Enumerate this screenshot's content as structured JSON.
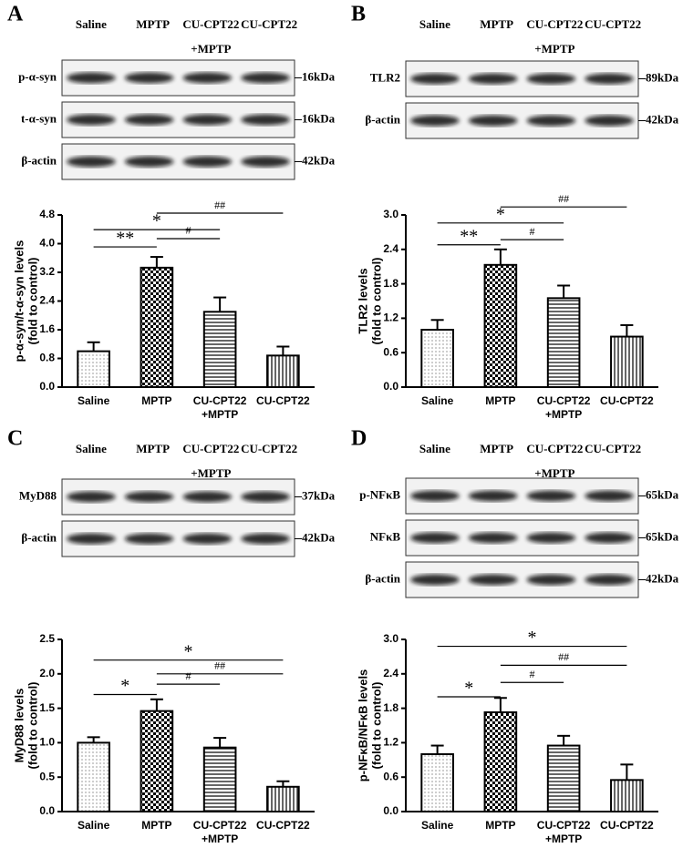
{
  "chart_data": [
    {
      "type": "bar",
      "panel_label": "A",
      "ylabel": [
        "p-α-syn/t-α-syn levels",
        "(fold to control)"
      ],
      "categories": [
        "Saline",
        "MPTP",
        [
          "CU-CPT22",
          "+MPTP"
        ],
        "CU-CPT22"
      ],
      "values": [
        1.0,
        3.33,
        2.1,
        0.88
      ],
      "errors": [
        0.25,
        0.3,
        0.4,
        0.25
      ],
      "patterns": [
        "dots",
        "checker",
        "hlines",
        "vlines"
      ],
      "color": "#000000",
      "ylim": [
        0,
        4.8
      ],
      "yticks": [
        {
          "value": 0,
          "label": "0.0"
        },
        0.8,
        1.6,
        2.4,
        3.2,
        {
          "value": 4,
          "label": "4.0"
        },
        4.8
      ],
      "annotations": [
        {
          "text": "**",
          "from": 0,
          "to": 1,
          "y": 3.91
        },
        {
          "text": "#",
          "from": 1,
          "to": 2,
          "y": 4.14
        },
        {
          "text": "*",
          "from": 0,
          "to": 2,
          "y": 4.39
        },
        {
          "text": "##",
          "from": 1,
          "to": 3,
          "y": 4.85
        }
      ]
    },
    {
      "type": "bar",
      "panel_label": "B",
      "ylabel": [
        "TLR2 levels",
        "(fold to control)"
      ],
      "categories": [
        "Saline",
        "MPTP",
        [
          "CU-CPT22",
          "+MPTP"
        ],
        "CU-CPT22"
      ],
      "values": [
        1.0,
        2.13,
        1.55,
        0.88
      ],
      "errors": [
        0.17,
        0.27,
        0.22,
        0.2
      ],
      "patterns": [
        "dots",
        "checker",
        "hlines",
        "vlines"
      ],
      "color": "#000000",
      "ylim": [
        0,
        3.0
      ],
      "yticks": [
        {
          "value": 0,
          "label": "0.0"
        },
        0.6,
        1.2,
        1.8,
        2.4,
        {
          "value": 3,
          "label": "3.0"
        }
      ],
      "annotations": [
        {
          "text": "**",
          "from": 0,
          "to": 1,
          "y": 2.48
        },
        {
          "text": "#",
          "from": 1,
          "to": 2,
          "y": 2.57
        },
        {
          "text": "*",
          "from": 0,
          "to": 2,
          "y": 2.86
        },
        {
          "text": "##",
          "from": 1,
          "to": 3,
          "y": 3.14
        }
      ]
    },
    {
      "type": "bar",
      "panel_label": "C",
      "ylabel": [
        "MyD88 levels",
        "(fold to control)"
      ],
      "categories": [
        "Saline",
        "MPTP",
        [
          "CU-CPT22",
          "+MPTP"
        ],
        "CU-CPT22"
      ],
      "values": [
        1.0,
        1.46,
        0.93,
        0.36
      ],
      "errors": [
        0.08,
        0.17,
        0.14,
        0.08
      ],
      "patterns": [
        "dots",
        "checker",
        "hlines",
        "vlines"
      ],
      "color": "#000000",
      "ylim": [
        0,
        2.5
      ],
      "yticks": [
        {
          "value": 0,
          "label": "0.0"
        },
        0.5,
        {
          "value": 1,
          "label": "1.0"
        },
        1.5,
        {
          "value": 2,
          "label": "2.0"
        },
        2.5
      ],
      "annotations": [
        {
          "text": "*",
          "from": 0,
          "to": 1,
          "y": 1.7
        },
        {
          "text": "#",
          "from": 1,
          "to": 2,
          "y": 1.85
        },
        {
          "text": "##",
          "from": 1,
          "to": 3,
          "y": 2.0
        },
        {
          "text": "*",
          "from": 0,
          "to": 3,
          "y": 2.2
        }
      ]
    },
    {
      "type": "bar",
      "panel_label": "D",
      "ylabel": [
        "p-NFκB/NFκB levels",
        "(fold to control)"
      ],
      "categories": [
        "Saline",
        "MPTP",
        [
          "CU-CPT22",
          "+MPTP"
        ],
        "CU-CPT22"
      ],
      "values": [
        1.0,
        1.73,
        1.15,
        0.55
      ],
      "errors": [
        0.15,
        0.25,
        0.17,
        0.27
      ],
      "patterns": [
        "dots",
        "checker",
        "hlines",
        "vlines"
      ],
      "color": "#000000",
      "ylim": [
        0,
        3.0
      ],
      "yticks": [
        {
          "value": 0,
          "label": "0.0"
        },
        0.6,
        1.2,
        1.8,
        2.4,
        {
          "value": 3,
          "label": "3.0"
        }
      ],
      "annotations": [
        {
          "text": "*",
          "from": 0,
          "to": 1,
          "y": 2.0
        },
        {
          "text": "#",
          "from": 1,
          "to": 2,
          "y": 2.25
        },
        {
          "text": "##",
          "from": 1,
          "to": 3,
          "y": 2.55
        },
        {
          "text": "*",
          "from": 0,
          "to": 3,
          "y": 2.88
        }
      ]
    }
  ],
  "blots": [
    {
      "lanes": [
        "Saline",
        "MPTP",
        [
          "CU-CPT22",
          "+MPTP"
        ],
        "CU-CPT22"
      ],
      "rows": [
        {
          "label": "p-α-syn",
          "size": "16kDa"
        },
        {
          "label": "t-α-syn",
          "size": "16kDa"
        },
        {
          "label": "β-actin",
          "size": "42kDa"
        }
      ]
    },
    {
      "lanes": [
        "Saline",
        "MPTP",
        [
          "CU-CPT22",
          "+MPTP"
        ],
        "CU-CPT22"
      ],
      "rows": [
        {
          "label": "TLR2",
          "size": "89kDa"
        },
        {
          "label": "β-actin",
          "size": "42kDa"
        }
      ]
    },
    {
      "lanes": [
        "Saline",
        "MPTP",
        [
          "CU-CPT22",
          "+MPTP"
        ],
        "CU-CPT22"
      ],
      "rows": [
        {
          "label": "MyD88",
          "size": "37kDa"
        },
        {
          "label": "β-actin",
          "size": "42kDa"
        }
      ]
    },
    {
      "lanes": [
        "Saline",
        "MPTP",
        [
          "CU-CPT22",
          "+MPTP"
        ],
        "CU-CPT22"
      ],
      "rows": [
        {
          "label": "p-NFκB",
          "size": "65kDa"
        },
        {
          "label": "NFκB",
          "size": "65kDa"
        },
        {
          "label": "β-actin",
          "size": "42kDa"
        }
      ]
    }
  ]
}
